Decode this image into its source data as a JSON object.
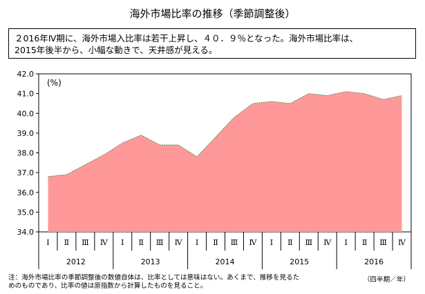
{
  "title": "海外市場比率の推移（季節調整後）",
  "summary": {
    "line1": "２016年Ⅳ期に、海外市場入比率は若干上昇し、４０．９％となった。海外市場比率は、",
    "line2": "2015年後半から、小幅な動きで、天井感が見える。"
  },
  "note": {
    "line1": "注：海外市場比率の季節調整後の数値自体は、比率としては意味はない。あくまで、推移を見るた",
    "line2": "めのものであり、比率の値は原指数から計算したものを見ること。"
  },
  "unit_note": "（四半期／年）",
  "chart_data": {
    "type": "area",
    "unit_label": "(%)",
    "ylim": [
      34.0,
      42.0
    ],
    "yticks": [
      "34.0",
      "35.0",
      "36.0",
      "37.0",
      "38.0",
      "39.0",
      "40.0",
      "41.0",
      "42.0"
    ],
    "quarter_labels": [
      "Ⅰ",
      "Ⅱ",
      "Ⅲ",
      "Ⅳ",
      "Ⅰ",
      "Ⅱ",
      "Ⅲ",
      "Ⅳ",
      "Ⅰ",
      "Ⅱ",
      "Ⅲ",
      "Ⅳ",
      "Ⅰ",
      "Ⅱ",
      "Ⅲ",
      "Ⅳ",
      "Ⅰ",
      "Ⅱ",
      "Ⅲ",
      "Ⅳ"
    ],
    "years": [
      "2012",
      "2013",
      "2014",
      "2015",
      "2016"
    ],
    "values": [
      36.8,
      36.9,
      37.4,
      37.9,
      38.5,
      38.9,
      38.4,
      38.4,
      37.8,
      38.8,
      39.8,
      40.5,
      40.6,
      40.5,
      41.0,
      40.9,
      41.1,
      41.0,
      40.7,
      40.9
    ],
    "fill_color": "#ff9999",
    "line_color": "#3a7a3a",
    "grid": false
  }
}
